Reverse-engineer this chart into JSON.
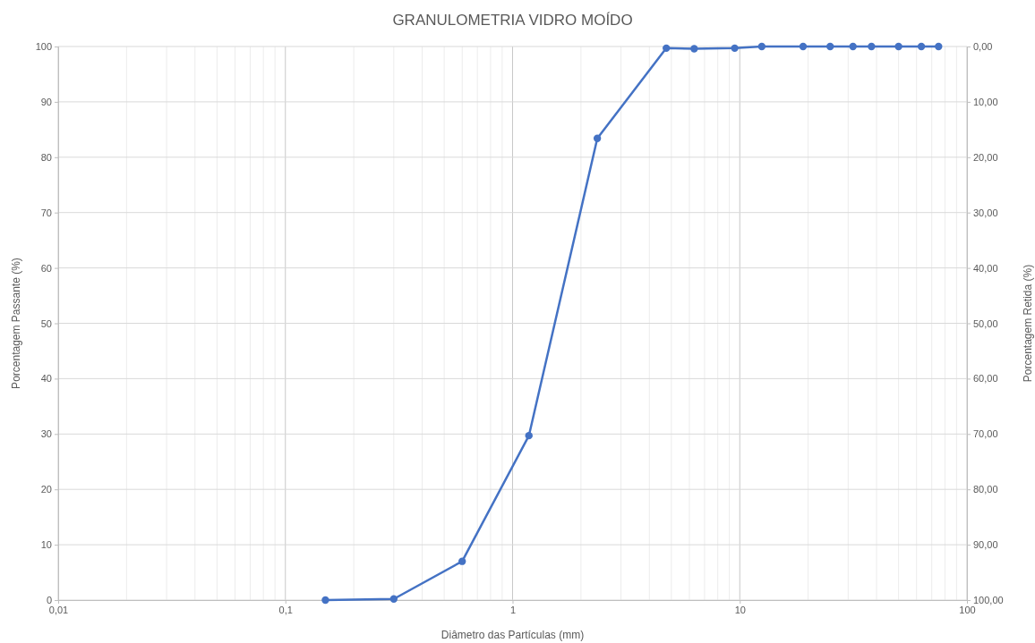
{
  "chart_data": {
    "type": "line",
    "title": "GRANULOMETRIA VIDRO MOÍDO",
    "xlabel": "Diâmetro das Partículas (mm)",
    "ylabel": "Porcentagem Passante (%)",
    "y2label": "Porcentagem Retida (%)",
    "log": "x",
    "grid": true,
    "marker": "circle",
    "line_style": "solid",
    "xlim": [
      0.01,
      100
    ],
    "xticks": [
      {
        "value": 0.01,
        "label": "0,01"
      },
      {
        "value": 0.1,
        "label": "0,1"
      },
      1,
      10,
      100
    ],
    "ylim": [
      0,
      100
    ],
    "yticks": [
      0,
      10,
      20,
      30,
      40,
      50,
      60,
      70,
      80,
      90,
      100
    ],
    "y2lim": [
      100,
      0
    ],
    "y2ticks": [
      {
        "value": 100,
        "label": "100,00"
      },
      {
        "value": 90,
        "label": "90,00"
      },
      {
        "value": 80,
        "label": "80,00"
      },
      {
        "value": 70,
        "label": "70,00"
      },
      {
        "value": 60,
        "label": "60,00"
      },
      {
        "value": 50,
        "label": "50,00"
      },
      {
        "value": 40,
        "label": "40,00"
      },
      {
        "value": 30,
        "label": "30,00"
      },
      {
        "value": 20,
        "label": "20,00"
      },
      {
        "value": 10,
        "label": "10,00"
      },
      {
        "value": 0,
        "label": "0,00"
      }
    ],
    "x": [
      0.15,
      0.3,
      0.6,
      1.18,
      2.36,
      4.75,
      6.3,
      9.5,
      12.5,
      19,
      25,
      31.5,
      38,
      50,
      63,
      75
    ],
    "series": [
      {
        "color": "#4472c4",
        "values": [
          0,
          0.2,
          7,
          29.7,
          83.4,
          99.7,
          99.6,
          99.7,
          100,
          100,
          100,
          100,
          100,
          100,
          100,
          100
        ]
      }
    ]
  }
}
